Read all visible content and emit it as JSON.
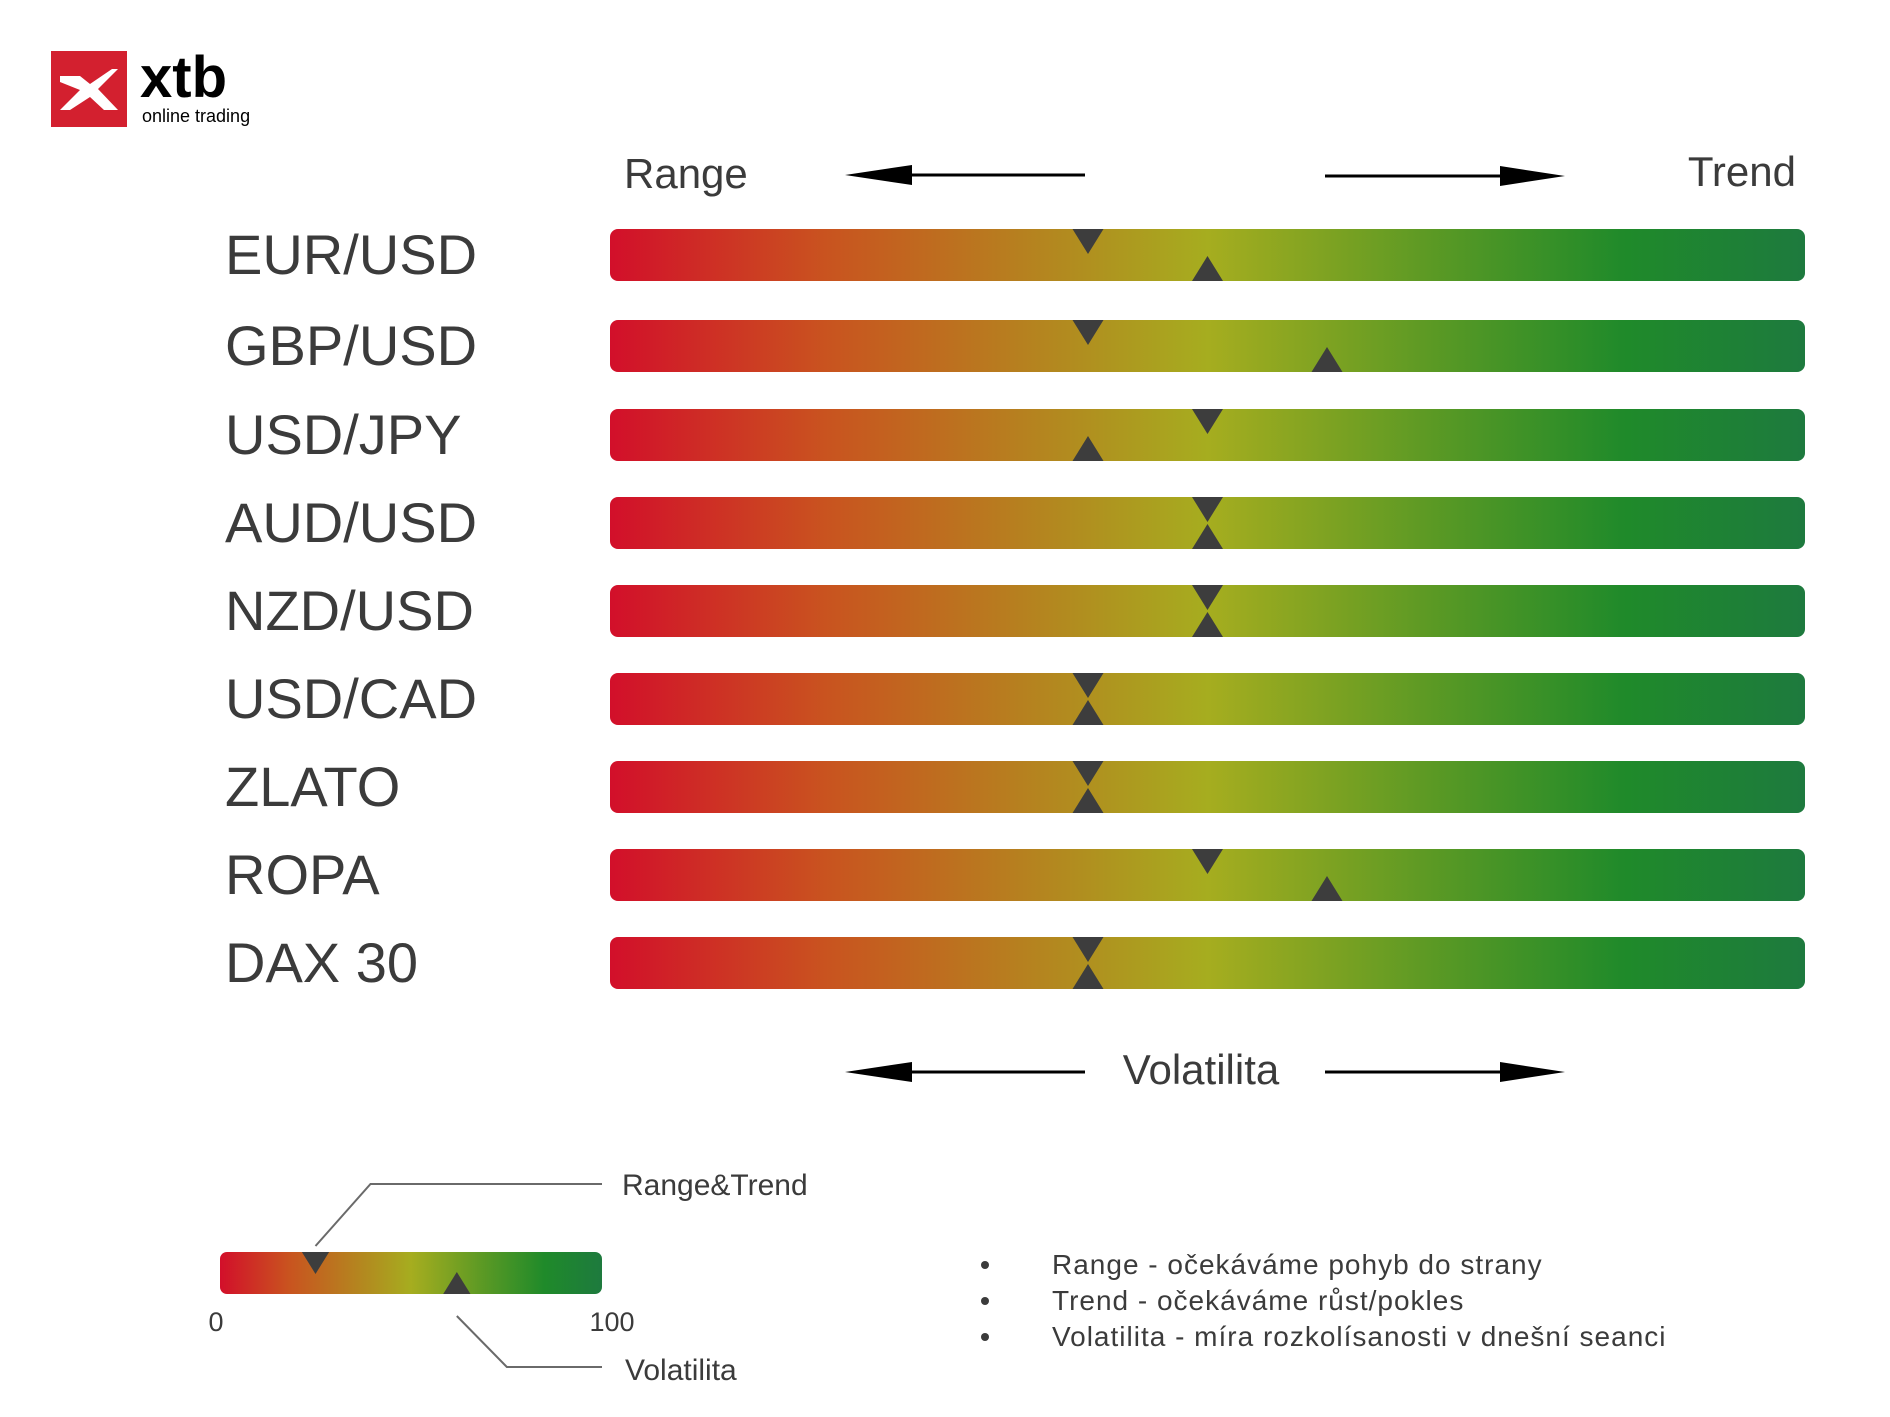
{
  "logo": {
    "brand": "xtb",
    "tagline": "online trading",
    "brand_color": "#d3202f"
  },
  "header": {
    "left_label": "Range",
    "right_label": "Trend"
  },
  "bottom_axis": {
    "label": "Volatilita"
  },
  "colors": {
    "gradient": [
      "#d20f2a",
      "#c9531f",
      "#b28a1f",
      "#a6ad1f",
      "#5e9a24",
      "#1f8a2a",
      "#1e7a3e"
    ],
    "marker": "#3d3d3d"
  },
  "chart_data": {
    "type": "table",
    "scale": [
      0,
      100
    ],
    "rows": [
      {
        "name": "EUR/USD",
        "range_trend": 40,
        "volatility": 50
      },
      {
        "name": "GBP/USD",
        "range_trend": 40,
        "volatility": 60
      },
      {
        "name": "USD/JPY",
        "range_trend": 50,
        "volatility": 40
      },
      {
        "name": "AUD/USD",
        "range_trend": 50,
        "volatility": 50
      },
      {
        "name": "NZD/USD",
        "range_trend": 50,
        "volatility": 50
      },
      {
        "name": "USD/CAD",
        "range_trend": 40,
        "volatility": 40
      },
      {
        "name": "ZLATO",
        "range_trend": 40,
        "volatility": 40
      },
      {
        "name": "ROPA",
        "range_trend": 50,
        "volatility": 60
      },
      {
        "name": "DAX 30",
        "range_trend": 40,
        "volatility": 40
      }
    ]
  },
  "legend": {
    "min_label": "0",
    "max_label": "100",
    "top_marker_label": "Range&Trend",
    "bottom_marker_label": "Volatilita",
    "example_range_trend": 25,
    "example_volatility": 62
  },
  "notes": [
    "Range - očekáváme pohyb do strany",
    "Trend - očekáváme růst/pokles",
    "Volatilita - míra rozkolísanosti v dnešní seanci"
  ]
}
